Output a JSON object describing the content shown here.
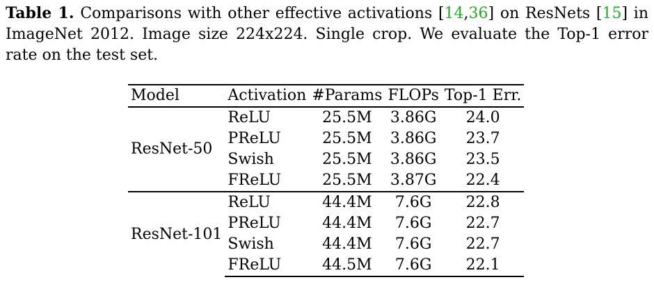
{
  "caption": {
    "label": "Table 1.",
    "text_before_cite1": " Comparisons with other effective activations [",
    "cite1a": "14",
    "cite_sep": ",",
    "cite1b": "36",
    "text_after_cite1": "] on ResNets [",
    "cite2": "15",
    "text_after_cite2": "] in ImageNet 2012. Image size 224x224. Single crop. We evaluate the Top-1 error rate on the test set."
  },
  "table": {
    "headers": [
      "Model",
      "Activation",
      "#Params",
      "FLOPs",
      "Top-1 Err."
    ],
    "groups": [
      {
        "model": "ResNet-50",
        "rows": [
          {
            "activation": "ReLU",
            "params": "25.5M",
            "flops": "3.86G",
            "top1": "24.0",
            "best": false
          },
          {
            "activation": "PReLU",
            "params": "25.5M",
            "flops": "3.86G",
            "top1": "23.7",
            "best": false
          },
          {
            "activation": "Swish",
            "params": "25.5M",
            "flops": "3.86G",
            "top1": "23.5",
            "best": false
          },
          {
            "activation": "FReLU",
            "params": "25.5M",
            "flops": "3.87G",
            "top1": "22.4",
            "best": true
          }
        ]
      },
      {
        "model": "ResNet-101",
        "rows": [
          {
            "activation": "ReLU",
            "params": "44.4M",
            "flops": "7.6G",
            "top1": "22.8",
            "best": false
          },
          {
            "activation": "PReLU",
            "params": "44.4M",
            "flops": "7.6G",
            "top1": "22.7",
            "best": false
          },
          {
            "activation": "Swish",
            "params": "44.4M",
            "flops": "7.6G",
            "top1": "22.7",
            "best": false
          },
          {
            "activation": "FReLU",
            "params": "44.5M",
            "flops": "7.6G",
            "top1": "22.1",
            "best": true
          }
        ]
      }
    ],
    "colors": {
      "citation": "#22aa22"
    }
  }
}
